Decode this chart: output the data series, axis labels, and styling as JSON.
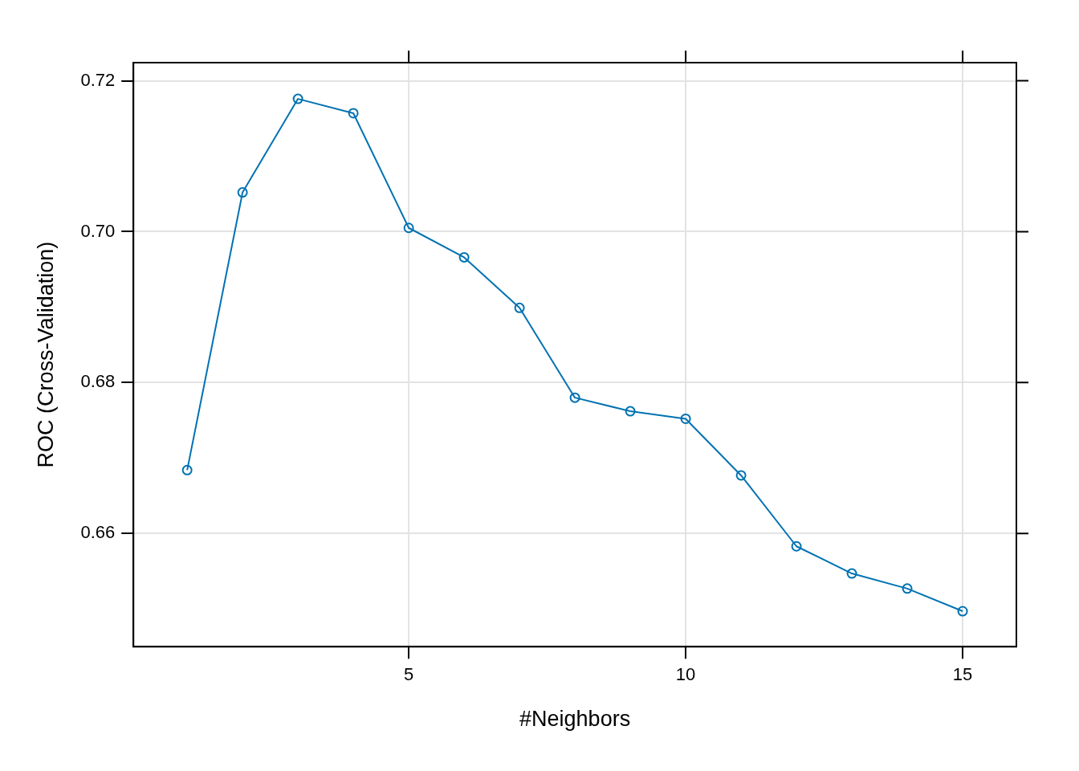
{
  "chart_data": {
    "type": "line",
    "xlabel": "#Neighbors",
    "ylabel": "ROC (Cross-Validation)",
    "x": [
      1,
      2,
      3,
      4,
      5,
      6,
      7,
      8,
      9,
      10,
      11,
      12,
      13,
      14,
      15
    ],
    "series": [
      {
        "color": "#0072b2",
        "values": [
          0.6684,
          0.7052,
          0.7176,
          0.7157,
          0.7005,
          0.6966,
          0.6899,
          0.678,
          0.6762,
          0.6752,
          0.6677,
          0.6583,
          0.6547,
          0.6527,
          0.6497
        ]
      }
    ],
    "xlim": [
      0.03,
      15.97
    ],
    "xticks": [
      5,
      10,
      15
    ],
    "ylim": [
      0.645,
      0.7224
    ],
    "yticks": [
      {
        "value": 0.66,
        "label": "0.66"
      },
      {
        "value": 0.68,
        "label": "0.68"
      },
      {
        "value": 0.7,
        "label": "0.70"
      },
      {
        "value": 0.72,
        "label": "0.72"
      }
    ],
    "grid": true,
    "legend": false,
    "marker": "circle",
    "line_style": "solid"
  }
}
